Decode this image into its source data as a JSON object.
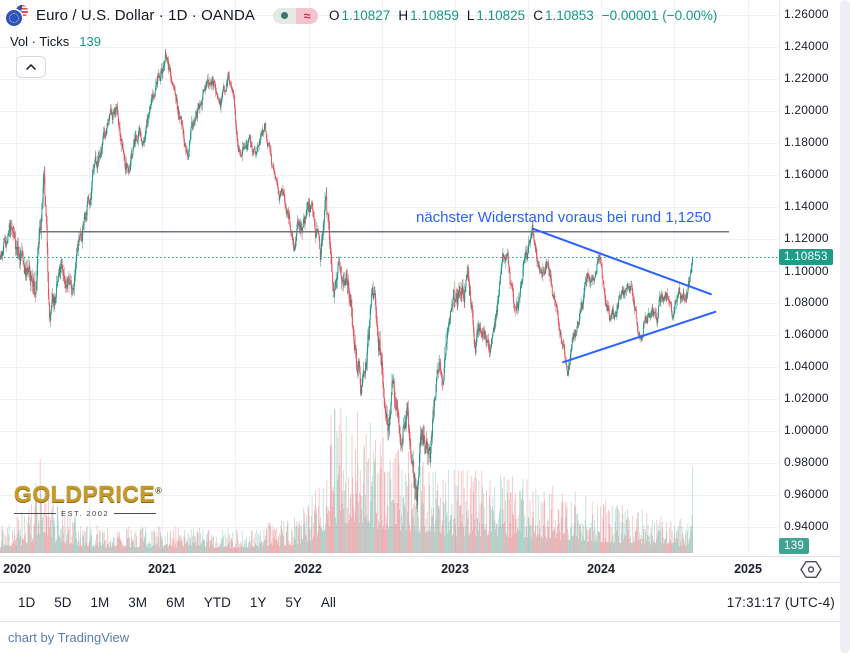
{
  "header": {
    "title": "Euro / U.S. Dollar · 1D · OANDA",
    "pills": {
      "approx": "≈"
    },
    "ohlc": {
      "o_label": "O",
      "o": "1.10827",
      "h_label": "H",
      "h": "1.10859",
      "l_label": "L",
      "l": "1.10825",
      "c_label": "C",
      "c": "1.10853",
      "change": "−0.00001 (−0.00%)"
    },
    "indicator": {
      "label": "Vol · Ticks",
      "value": "139"
    }
  },
  "chart": {
    "annotation": {
      "text": "nächster Widerstand voraus bei rund 1,1250",
      "color": "#2962FF"
    },
    "price_badge": "1.10853",
    "volume_badge": "139",
    "watermark": {
      "name": "GOLDPRICE",
      "reg": "®",
      "subtitle": "EST. 2002"
    },
    "drawings": {
      "resistance": {
        "t1": 2020.16,
        "p1": 1.1245,
        "t2": 2024.87,
        "p2": 1.1245,
        "color": "#70747f",
        "width": 1.5
      },
      "upper_trendline": {
        "t1": 2023.53,
        "p1": 1.1265,
        "t2": 2024.75,
        "p2": 1.0855,
        "color": "#2962FF",
        "width": 2
      },
      "lower_trendline": {
        "t1": 2023.74,
        "p1": 1.043,
        "t2": 2024.78,
        "p2": 1.0745,
        "color": "#2962FF",
        "width": 2
      }
    }
  },
  "axes": {
    "price_ticks": [
      "1.26000",
      "1.24000",
      "1.22000",
      "1.20000",
      "1.18000",
      "1.16000",
      "1.14000",
      "1.12000",
      "1.10000",
      "1.08000",
      "1.06000",
      "1.04000",
      "1.02000",
      "1.00000",
      "0.98000",
      "0.96000",
      "0.94000"
    ],
    "time_ticks": [
      "2020",
      "2021",
      "2022",
      "2023",
      "2024",
      "2025"
    ]
  },
  "toolbar": {
    "ranges": [
      "1D",
      "5D",
      "1M",
      "3M",
      "6M",
      "YTD",
      "1Y",
      "5Y",
      "All"
    ],
    "clock": "17:31:17 (UTC-4)"
  },
  "footer": {
    "attribution": "chart by TradingView"
  },
  "chart_data": {
    "type": "candlestick+volume",
    "symbol": "EUR/USD",
    "interval": "1D",
    "title": "Euro / U.S. Dollar · 1D · OANDA",
    "last_close": 1.10853,
    "ylim": [
      0.94,
      1.26
    ],
    "x_years": [
      2019.872,
      2024.625
    ],
    "grid": true,
    "price_anchors": [
      [
        2019.872,
        1.104
      ],
      [
        2019.96,
        1.121
      ],
      [
        2020.04,
        1.109
      ],
      [
        2020.13,
        1.079
      ],
      [
        2020.19,
        1.148
      ],
      [
        2020.23,
        1.065
      ],
      [
        2020.3,
        1.09
      ],
      [
        2020.38,
        1.092
      ],
      [
        2020.45,
        1.127
      ],
      [
        2020.55,
        1.17
      ],
      [
        2020.62,
        1.186
      ],
      [
        2020.68,
        1.199
      ],
      [
        2020.75,
        1.164
      ],
      [
        2020.82,
        1.183
      ],
      [
        2020.88,
        1.18
      ],
      [
        2020.95,
        1.216
      ],
      [
        2021.02,
        1.2335
      ],
      [
        2021.1,
        1.203
      ],
      [
        2021.18,
        1.172
      ],
      [
        2021.26,
        1.203
      ],
      [
        2021.33,
        1.2215
      ],
      [
        2021.4,
        1.206
      ],
      [
        2021.45,
        1.2255
      ],
      [
        2021.52,
        1.185
      ],
      [
        2021.58,
        1.179
      ],
      [
        2021.64,
        1.169
      ],
      [
        2021.7,
        1.189
      ],
      [
        2021.77,
        1.157
      ],
      [
        2021.83,
        1.145
      ],
      [
        2021.9,
        1.1205
      ],
      [
        2021.97,
        1.133
      ],
      [
        2022.03,
        1.1365
      ],
      [
        2022.08,
        1.1135
      ],
      [
        2022.11,
        1.1475
      ],
      [
        2022.16,
        1.0985
      ],
      [
        2022.19,
        1.084
      ],
      [
        2022.26,
        1.1135
      ],
      [
        2022.31,
        1.076
      ],
      [
        2022.36,
        1.0395
      ],
      [
        2022.44,
        1.0765
      ],
      [
        2022.5,
        1.0395
      ],
      [
        2022.54,
        1.0085
      ],
      [
        2022.58,
        1.026
      ],
      [
        2022.63,
        0.9955
      ],
      [
        2022.67,
        1.0195
      ],
      [
        2022.7,
        0.988
      ],
      [
        2022.74,
        0.9565
      ],
      [
        2022.79,
        0.9985
      ],
      [
        2022.83,
        0.9735
      ],
      [
        2022.88,
        1.0345
      ],
      [
        2022.93,
        1.0425
      ],
      [
        2022.97,
        1.0705
      ],
      [
        2023.04,
        1.0875
      ],
      [
        2023.09,
        1.1035
      ],
      [
        2023.14,
        1.055
      ],
      [
        2023.2,
        1.0745
      ],
      [
        2023.24,
        1.0605
      ],
      [
        2023.3,
        1.0925
      ],
      [
        2023.36,
        1.1055
      ],
      [
        2023.41,
        1.0645
      ],
      [
        2023.47,
        1.0975
      ],
      [
        2023.53,
        1.127
      ],
      [
        2023.58,
        1.0945
      ],
      [
        2023.63,
        1.1035
      ],
      [
        2023.7,
        1.0695
      ],
      [
        2023.77,
        1.0455
      ],
      [
        2023.83,
        1.0695
      ],
      [
        2023.88,
        1.0835
      ],
      [
        2023.93,
        1.0985
      ],
      [
        2023.99,
        1.1125
      ],
      [
        2024.04,
        1.0795
      ],
      [
        2024.09,
        1.0715
      ],
      [
        2024.14,
        1.0875
      ],
      [
        2024.2,
        1.0935
      ],
      [
        2024.27,
        1.0605
      ],
      [
        2024.33,
        1.0815
      ],
      [
        2024.38,
        1.0655
      ],
      [
        2024.44,
        1.0895
      ],
      [
        2024.49,
        1.0665
      ],
      [
        2024.53,
        1.0855
      ],
      [
        2024.57,
        1.0785
      ],
      [
        2024.6,
        1.0905
      ],
      [
        2024.625,
        1.1085
      ]
    ],
    "volatility_anchors": [
      [
        2019.872,
        0.0045
      ],
      [
        2020.12,
        0.01
      ],
      [
        2020.25,
        0.008
      ],
      [
        2020.6,
        0.0055
      ],
      [
        2021.2,
        0.005
      ],
      [
        2021.8,
        0.0045
      ],
      [
        2022.15,
        0.0085
      ],
      [
        2022.6,
        0.009
      ],
      [
        2022.8,
        0.0095
      ],
      [
        2023.2,
        0.0065
      ],
      [
        2023.6,
        0.0055
      ],
      [
        2024.0,
        0.0045
      ],
      [
        2024.625,
        0.005
      ]
    ],
    "volume_anchors": [
      [
        2019.872,
        14
      ],
      [
        2020.1,
        26
      ],
      [
        2020.18,
        62
      ],
      [
        2020.25,
        30
      ],
      [
        2020.5,
        16
      ],
      [
        2021.0,
        15
      ],
      [
        2021.5,
        14
      ],
      [
        2021.9,
        20
      ],
      [
        2022.05,
        38
      ],
      [
        2022.15,
        80
      ],
      [
        2022.3,
        85
      ],
      [
        2022.45,
        70
      ],
      [
        2022.6,
        62
      ],
      [
        2022.75,
        58
      ],
      [
        2022.9,
        50
      ],
      [
        2023.1,
        46
      ],
      [
        2023.25,
        48
      ],
      [
        2023.5,
        42
      ],
      [
        2023.7,
        38
      ],
      [
        2023.9,
        32
      ],
      [
        2024.1,
        28
      ],
      [
        2024.3,
        24
      ],
      [
        2024.5,
        20
      ],
      [
        2024.6,
        18
      ],
      [
        2024.625,
        60
      ]
    ],
    "colors": {
      "up": "#109c84",
      "down": "#ef4a57",
      "up_wick": "rgba(8,120,100,0.8)",
      "down_wick": "rgba(203,58,68,0.8)",
      "up_volume": "rgba(42,145,123,0.33)",
      "down_volume": "rgba(228,92,102,0.42)",
      "grid": "#eef1f6",
      "last_price_line": "#1b9a84",
      "accent_blue": "#2962FF",
      "badge_green": "#1f9c88"
    }
  }
}
